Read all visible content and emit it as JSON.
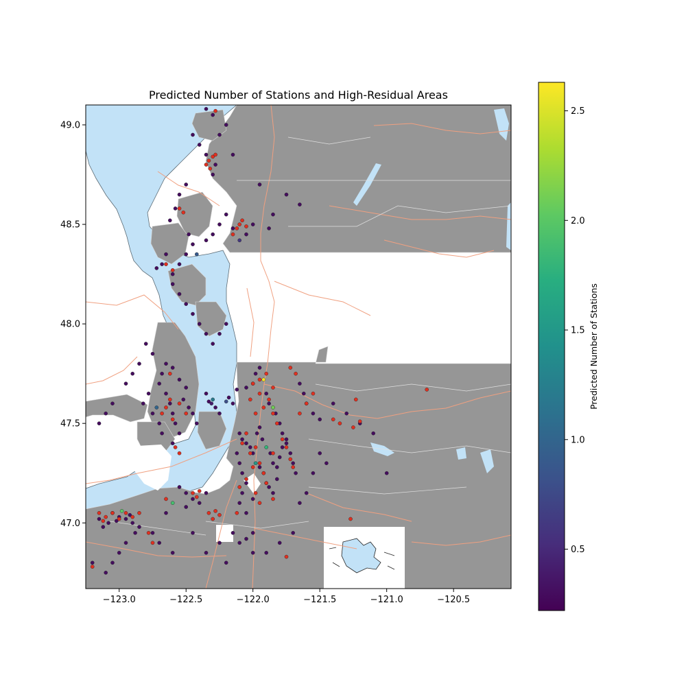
{
  "chart_data": {
    "type": "scatter",
    "title": "Predicted Number of Stations and High-Residual Areas",
    "xlabel": "",
    "ylabel": "",
    "xlim": [
      -123.25,
      -120.07
    ],
    "ylim": [
      46.67,
      49.1
    ],
    "x_ticks": [
      {
        "value": -123.0,
        "label": "−123.0"
      },
      {
        "value": -122.5,
        "label": "−122.5"
      },
      {
        "value": -122.0,
        "label": "−122.0"
      },
      {
        "value": -121.5,
        "label": "−121.5"
      },
      {
        "value": -121.0,
        "label": "−121.0"
      },
      {
        "value": -120.5,
        "label": "−120.5"
      }
    ],
    "y_ticks": [
      {
        "value": 47.0,
        "label": "47.0"
      },
      {
        "value": 47.5,
        "label": "47.5"
      },
      {
        "value": 48.0,
        "label": "48.0"
      },
      {
        "value": 48.5,
        "label": "48.5"
      },
      {
        "value": 49.0,
        "label": "49.0"
      }
    ],
    "colorbar": {
      "label": "Predicted Number of Stations",
      "colormap": "viridis",
      "range": [
        0.22,
        2.63
      ],
      "ticks": [
        {
          "value": 0.5,
          "label": "0.5"
        },
        {
          "value": 1.0,
          "label": "1.0"
        },
        {
          "value": 1.5,
          "label": "1.5"
        },
        {
          "value": 2.0,
          "label": "2.0"
        },
        {
          "value": 2.5,
          "label": "2.5"
        }
      ]
    },
    "colors": {
      "land": "#969696",
      "water": "#c2e2f7",
      "roads": "#f0a080",
      "boundaries": "#dddddd",
      "high_residual": "#e03020"
    },
    "predicted_points": [
      [
        -122.33,
        47.61,
        0.3
      ],
      [
        -122.31,
        47.6,
        0.4
      ],
      [
        -122.3,
        47.62,
        1.2
      ],
      [
        -122.28,
        47.58,
        0.3
      ],
      [
        -122.25,
        47.55,
        0.3
      ],
      [
        -122.35,
        47.65,
        0.3
      ],
      [
        -122.2,
        47.61,
        0.8
      ],
      [
        -122.18,
        47.63,
        0.3
      ],
      [
        -122.15,
        47.6,
        0.3
      ],
      [
        -122.12,
        47.67,
        0.3
      ],
      [
        -122.05,
        47.68,
        0.3
      ],
      [
        -122.0,
        47.7,
        0.3
      ],
      [
        -121.98,
        47.75,
        0.3
      ],
      [
        -121.95,
        47.78,
        0.3
      ],
      [
        -121.92,
        47.72,
        2.6
      ],
      [
        -121.9,
        47.65,
        0.3
      ],
      [
        -121.88,
        47.6,
        0.3
      ],
      [
        -121.85,
        47.58,
        2.1
      ],
      [
        -121.83,
        47.55,
        0.3
      ],
      [
        -121.8,
        47.5,
        0.3
      ],
      [
        -121.78,
        47.45,
        0.3
      ],
      [
        -121.75,
        47.4,
        0.3
      ],
      [
        -121.72,
        47.35,
        0.3
      ],
      [
        -121.7,
        47.3,
        0.3
      ],
      [
        -121.68,
        47.25,
        0.3
      ],
      [
        -121.65,
        47.7,
        0.3
      ],
      [
        -121.62,
        47.65,
        0.3
      ],
      [
        -121.6,
        47.6,
        0.3
      ],
      [
        -121.55,
        47.55,
        0.3
      ],
      [
        -121.5,
        47.52,
        0.3
      ],
      [
        -122.05,
        47.4,
        0.3
      ],
      [
        -122.02,
        47.38,
        0.3
      ],
      [
        -122.0,
        47.35,
        0.3
      ],
      [
        -121.98,
        47.3,
        1.5
      ],
      [
        -121.95,
        47.28,
        0.3
      ],
      [
        -121.92,
        47.25,
        0.3
      ],
      [
        -121.9,
        47.2,
        0.3
      ],
      [
        -121.88,
        47.18,
        0.3
      ],
      [
        -121.85,
        47.15,
        0.3
      ],
      [
        -121.82,
        47.22,
        0.3
      ],
      [
        -122.1,
        47.45,
        0.3
      ],
      [
        -122.08,
        47.42,
        0.3
      ],
      [
        -122.12,
        47.35,
        0.3
      ],
      [
        -122.1,
        47.3,
        0.3
      ],
      [
        -122.08,
        47.25,
        0.3
      ],
      [
        -122.05,
        47.2,
        0.3
      ],
      [
        -122.08,
        47.15,
        0.3
      ],
      [
        -122.1,
        47.1,
        0.3
      ],
      [
        -122.05,
        47.05,
        0.3
      ],
      [
        -122.0,
        47.12,
        0.3
      ],
      [
        -121.97,
        47.45,
        0.3
      ],
      [
        -121.95,
        47.48,
        0.3
      ],
      [
        -121.93,
        47.42,
        0.3
      ],
      [
        -121.9,
        47.38,
        1.8
      ],
      [
        -121.87,
        47.35,
        0.3
      ],
      [
        -121.85,
        47.3,
        0.3
      ],
      [
        -121.82,
        47.28,
        0.3
      ],
      [
        -121.8,
        47.33,
        0.3
      ],
      [
        -121.78,
        47.38,
        0.3
      ],
      [
        -121.75,
        47.42,
        0.3
      ],
      [
        -122.65,
        47.65,
        0.3
      ],
      [
        -122.62,
        47.6,
        0.3
      ],
      [
        -122.6,
        47.55,
        0.3
      ],
      [
        -122.58,
        47.5,
        0.3
      ],
      [
        -122.55,
        47.45,
        0.3
      ],
      [
        -122.7,
        47.7,
        0.3
      ],
      [
        -122.68,
        47.75,
        0.3
      ],
      [
        -122.65,
        47.8,
        0.3
      ],
      [
        -122.6,
        47.78,
        0.3
      ],
      [
        -122.55,
        47.72,
        0.3
      ],
      [
        -122.72,
        47.58,
        1.0
      ],
      [
        -122.75,
        47.55,
        0.3
      ],
      [
        -122.7,
        47.5,
        0.3
      ],
      [
        -122.68,
        47.45,
        0.3
      ],
      [
        -122.5,
        47.68,
        0.3
      ],
      [
        -122.52,
        47.62,
        0.3
      ],
      [
        -122.48,
        47.58,
        0.3
      ],
      [
        -122.45,
        47.55,
        0.3
      ],
      [
        -122.42,
        47.5,
        0.3
      ],
      [
        -122.6,
        47.4,
        0.3
      ],
      [
        -123.05,
        47.05,
        0.3
      ],
      [
        -123.0,
        47.03,
        0.3
      ],
      [
        -122.95,
        47.02,
        0.3
      ],
      [
        -122.92,
        47.04,
        0.3
      ],
      [
        -122.9,
        47.0,
        0.3
      ],
      [
        -123.08,
        47.0,
        0.3
      ],
      [
        -123.12,
        46.98,
        0.3
      ],
      [
        -123.15,
        47.02,
        0.3
      ],
      [
        -122.85,
        46.98,
        0.3
      ],
      [
        -122.88,
        46.95,
        0.3
      ],
      [
        -122.95,
        46.9,
        0.3
      ],
      [
        -123.0,
        46.85,
        0.3
      ],
      [
        -123.05,
        46.8,
        0.3
      ],
      [
        -123.1,
        46.75,
        0.3
      ],
      [
        -123.2,
        46.8,
        0.3
      ],
      [
        -122.98,
        47.06,
        2.0
      ],
      [
        -123.02,
        47.01,
        0.3
      ],
      [
        -122.75,
        46.95,
        0.3
      ],
      [
        -122.7,
        46.9,
        0.3
      ],
      [
        -122.6,
        46.85,
        0.3
      ],
      [
        -122.5,
        47.15,
        0.3
      ],
      [
        -122.45,
        47.12,
        0.3
      ],
      [
        -122.4,
        47.1,
        0.3
      ],
      [
        -122.35,
        47.15,
        0.3
      ],
      [
        -122.55,
        47.18,
        0.3
      ],
      [
        -122.6,
        47.1,
        1.9
      ],
      [
        -122.65,
        47.05,
        0.3
      ],
      [
        -122.5,
        47.08,
        0.3
      ],
      [
        -122.45,
        46.95,
        0.3
      ],
      [
        -122.35,
        46.85,
        0.3
      ],
      [
        -122.25,
        46.9,
        0.3
      ],
      [
        -122.2,
        46.8,
        0.3
      ],
      [
        -122.15,
        46.95,
        0.3
      ],
      [
        -122.1,
        46.9,
        0.3
      ],
      [
        -122.0,
        46.85,
        0.3
      ],
      [
        -122.28,
        48.8,
        0.3
      ],
      [
        -122.3,
        48.75,
        0.3
      ],
      [
        -122.35,
        48.85,
        0.3
      ],
      [
        -122.4,
        48.9,
        0.3
      ],
      [
        -122.45,
        48.95,
        0.3
      ],
      [
        -122.25,
        48.95,
        0.3
      ],
      [
        -122.2,
        49.0,
        0.3
      ],
      [
        -122.3,
        49.05,
        0.3
      ],
      [
        -122.35,
        49.08,
        0.3
      ],
      [
        -122.15,
        48.85,
        0.3
      ],
      [
        -122.48,
        48.45,
        0.3
      ],
      [
        -122.45,
        48.4,
        0.3
      ],
      [
        -122.5,
        48.35,
        0.3
      ],
      [
        -122.55,
        48.3,
        0.3
      ],
      [
        -122.6,
        48.25,
        0.3
      ],
      [
        -122.35,
        48.42,
        0.3
      ],
      [
        -122.3,
        48.45,
        0.3
      ],
      [
        -122.25,
        48.5,
        0.3
      ],
      [
        -122.2,
        48.55,
        0.3
      ],
      [
        -122.15,
        48.48,
        0.3
      ],
      [
        -122.1,
        48.42,
        0.6
      ],
      [
        -122.05,
        48.45,
        0.3
      ],
      [
        -122.0,
        48.5,
        0.3
      ],
      [
        -122.65,
        48.35,
        0.3
      ],
      [
        -122.68,
        48.3,
        0.3
      ],
      [
        -122.72,
        48.28,
        0.3
      ],
      [
        -122.6,
        48.2,
        0.3
      ],
      [
        -122.55,
        48.15,
        0.3
      ],
      [
        -122.5,
        48.1,
        0.3
      ],
      [
        -122.45,
        48.05,
        0.3
      ],
      [
        -122.4,
        48.0,
        0.3
      ],
      [
        -122.35,
        47.95,
        0.3
      ],
      [
        -122.3,
        47.9,
        0.3
      ],
      [
        -122.25,
        47.95,
        0.3
      ],
      [
        -122.2,
        48.0,
        0.3
      ],
      [
        -122.75,
        47.85,
        0.3
      ],
      [
        -122.8,
        47.9,
        0.3
      ],
      [
        -122.85,
        47.8,
        0.3
      ],
      [
        -122.9,
        47.75,
        0.3
      ],
      [
        -122.95,
        47.7,
        0.3
      ],
      [
        -123.05,
        47.6,
        0.3
      ],
      [
        -123.1,
        47.55,
        0.3
      ],
      [
        -123.15,
        47.5,
        0.3
      ],
      [
        -122.82,
        47.6,
        0.3
      ],
      [
        -122.78,
        47.65,
        0.3
      ],
      [
        -121.4,
        47.6,
        0.3
      ],
      [
        -121.3,
        47.55,
        0.3
      ],
      [
        -121.2,
        47.5,
        0.3
      ],
      [
        -121.1,
        47.45,
        0.3
      ],
      [
        -121.0,
        47.25,
        0.3
      ],
      [
        -121.5,
        47.35,
        0.3
      ],
      [
        -121.45,
        47.3,
        0.3
      ],
      [
        -121.55,
        47.25,
        0.3
      ],
      [
        -121.6,
        47.15,
        0.3
      ],
      [
        -121.65,
        47.1,
        0.3
      ],
      [
        -121.7,
        46.95,
        0.3
      ],
      [
        -121.8,
        46.9,
        0.3
      ],
      [
        -121.9,
        46.85,
        0.3
      ],
      [
        -122.0,
        46.95,
        0.3
      ],
      [
        -122.05,
        46.92,
        0.3
      ],
      [
        -122.42,
        48.35,
        0.9
      ],
      [
        -122.62,
        48.52,
        0.3
      ],
      [
        -122.58,
        48.58,
        0.3
      ],
      [
        -122.55,
        48.65,
        0.3
      ],
      [
        -122.5,
        48.7,
        0.3
      ],
      [
        -121.75,
        48.65,
        0.3
      ],
      [
        -121.65,
        48.6,
        0.3
      ],
      [
        -121.95,
        48.7,
        0.3
      ],
      [
        -121.85,
        48.55,
        0.3
      ],
      [
        -121.88,
        48.48,
        0.3
      ]
    ],
    "high_residual_points": [
      [
        -122.33,
        48.82
      ],
      [
        -122.35,
        48.8
      ],
      [
        -122.3,
        48.84
      ],
      [
        -122.28,
        48.85
      ],
      [
        -122.32,
        48.78
      ],
      [
        -122.55,
        48.58
      ],
      [
        -122.52,
        48.56
      ],
      [
        -122.1,
        48.5
      ],
      [
        -122.12,
        48.48
      ],
      [
        -122.08,
        48.52
      ],
      [
        -122.05,
        48.49
      ],
      [
        -122.15,
        48.45
      ],
      [
        -122.6,
        48.27
      ],
      [
        -122.28,
        49.07
      ],
      [
        -122.0,
        47.7
      ],
      [
        -121.95,
        47.72
      ],
      [
        -121.9,
        47.75
      ],
      [
        -121.85,
        47.68
      ],
      [
        -121.88,
        47.62
      ],
      [
        -121.95,
        47.65
      ],
      [
        -122.02,
        47.62
      ],
      [
        -121.92,
        47.58
      ],
      [
        -121.98,
        47.55
      ],
      [
        -121.85,
        47.55
      ],
      [
        -121.82,
        47.5
      ],
      [
        -122.05,
        47.45
      ],
      [
        -122.08,
        47.4
      ],
      [
        -122.02,
        47.35
      ],
      [
        -121.98,
        47.38
      ],
      [
        -121.95,
        47.3
      ],
      [
        -122.0,
        47.28
      ],
      [
        -121.92,
        47.25
      ],
      [
        -122.05,
        47.22
      ],
      [
        -122.1,
        47.18
      ],
      [
        -121.98,
        47.15
      ],
      [
        -121.9,
        47.2
      ],
      [
        -121.85,
        47.35
      ],
      [
        -121.78,
        47.42
      ],
      [
        -121.75,
        47.38
      ],
      [
        -121.7,
        47.28
      ],
      [
        -121.72,
        47.32
      ],
      [
        -121.85,
        47.12
      ],
      [
        -121.95,
        47.1
      ],
      [
        -122.12,
        47.05
      ],
      [
        -121.65,
        47.55
      ],
      [
        -121.6,
        47.6
      ],
      [
        -121.55,
        47.65
      ],
      [
        -121.68,
        47.75
      ],
      [
        -121.72,
        47.78
      ],
      [
        -121.4,
        47.52
      ],
      [
        -121.35,
        47.5
      ],
      [
        -121.25,
        47.48
      ],
      [
        -121.2,
        47.51
      ],
      [
        -121.23,
        47.62
      ],
      [
        -120.7,
        47.67
      ],
      [
        -121.27,
        47.02
      ],
      [
        -121.75,
        46.83
      ],
      [
        -122.62,
        47.62
      ],
      [
        -122.65,
        47.58
      ],
      [
        -122.68,
        47.55
      ],
      [
        -122.6,
        47.52
      ],
      [
        -122.55,
        47.6
      ],
      [
        -122.5,
        47.55
      ],
      [
        -122.55,
        47.35
      ],
      [
        -122.58,
        47.38
      ],
      [
        -122.62,
        47.75
      ],
      [
        -123.05,
        47.05
      ],
      [
        -123.1,
        47.03
      ],
      [
        -123.0,
        47.02
      ],
      [
        -122.95,
        47.05
      ],
      [
        -122.9,
        47.03
      ],
      [
        -123.15,
        47.05
      ],
      [
        -123.12,
        47.01
      ],
      [
        -122.85,
        47.05
      ],
      [
        -122.75,
        46.9
      ],
      [
        -122.78,
        46.95
      ],
      [
        -123.2,
        46.78
      ],
      [
        -122.65,
        47.12
      ],
      [
        -122.45,
        47.15
      ],
      [
        -122.42,
        47.13
      ],
      [
        -122.4,
        47.16
      ],
      [
        -122.65,
        48.3
      ],
      [
        -122.3,
        47.02
      ],
      [
        -122.28,
        47.06
      ],
      [
        -122.25,
        47.04
      ],
      [
        -122.33,
        47.05
      ]
    ]
  }
}
